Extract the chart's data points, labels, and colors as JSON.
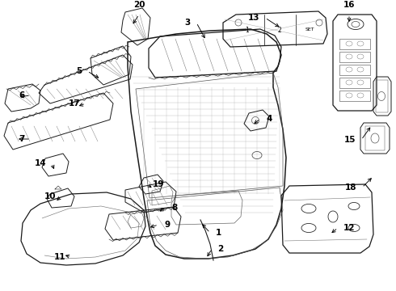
{
  "bg": "#ffffff",
  "lc": "#1a1a1a",
  "figsize": [
    4.9,
    3.6
  ],
  "dpi": 100,
  "leaders": [
    [
      260,
      288,
      248,
      275,
      "1",
      "right"
    ],
    [
      262,
      308,
      255,
      320,
      "2",
      "right"
    ],
    [
      243,
      28,
      255,
      50,
      "3",
      "left"
    ],
    [
      322,
      147,
      312,
      155,
      "4",
      "right"
    ],
    [
      108,
      88,
      125,
      98,
      "5",
      "left"
    ],
    [
      38,
      118,
      22,
      120,
      "6",
      "left"
    ],
    [
      38,
      172,
      20,
      172,
      "7",
      "left"
    ],
    [
      205,
      257,
      195,
      263,
      "8",
      "right"
    ],
    [
      196,
      278,
      183,
      282,
      "9",
      "right"
    ],
    [
      76,
      243,
      68,
      250,
      "10",
      "left"
    ],
    [
      88,
      318,
      78,
      315,
      "11",
      "left"
    ],
    [
      418,
      282,
      408,
      290,
      "12",
      "right"
    ],
    [
      328,
      22,
      348,
      35,
      "13",
      "left"
    ],
    [
      64,
      202,
      68,
      212,
      "14",
      "left"
    ],
    [
      447,
      173,
      460,
      155,
      "15",
      "left"
    ],
    [
      432,
      18,
      432,
      30,
      "16",
      "top"
    ],
    [
      106,
      128,
      95,
      132,
      "17",
      "left"
    ],
    [
      448,
      232,
      462,
      218,
      "18",
      "left"
    ],
    [
      182,
      228,
      190,
      234,
      "19",
      "right"
    ],
    [
      172,
      18,
      163,
      32,
      "20",
      "top"
    ]
  ]
}
